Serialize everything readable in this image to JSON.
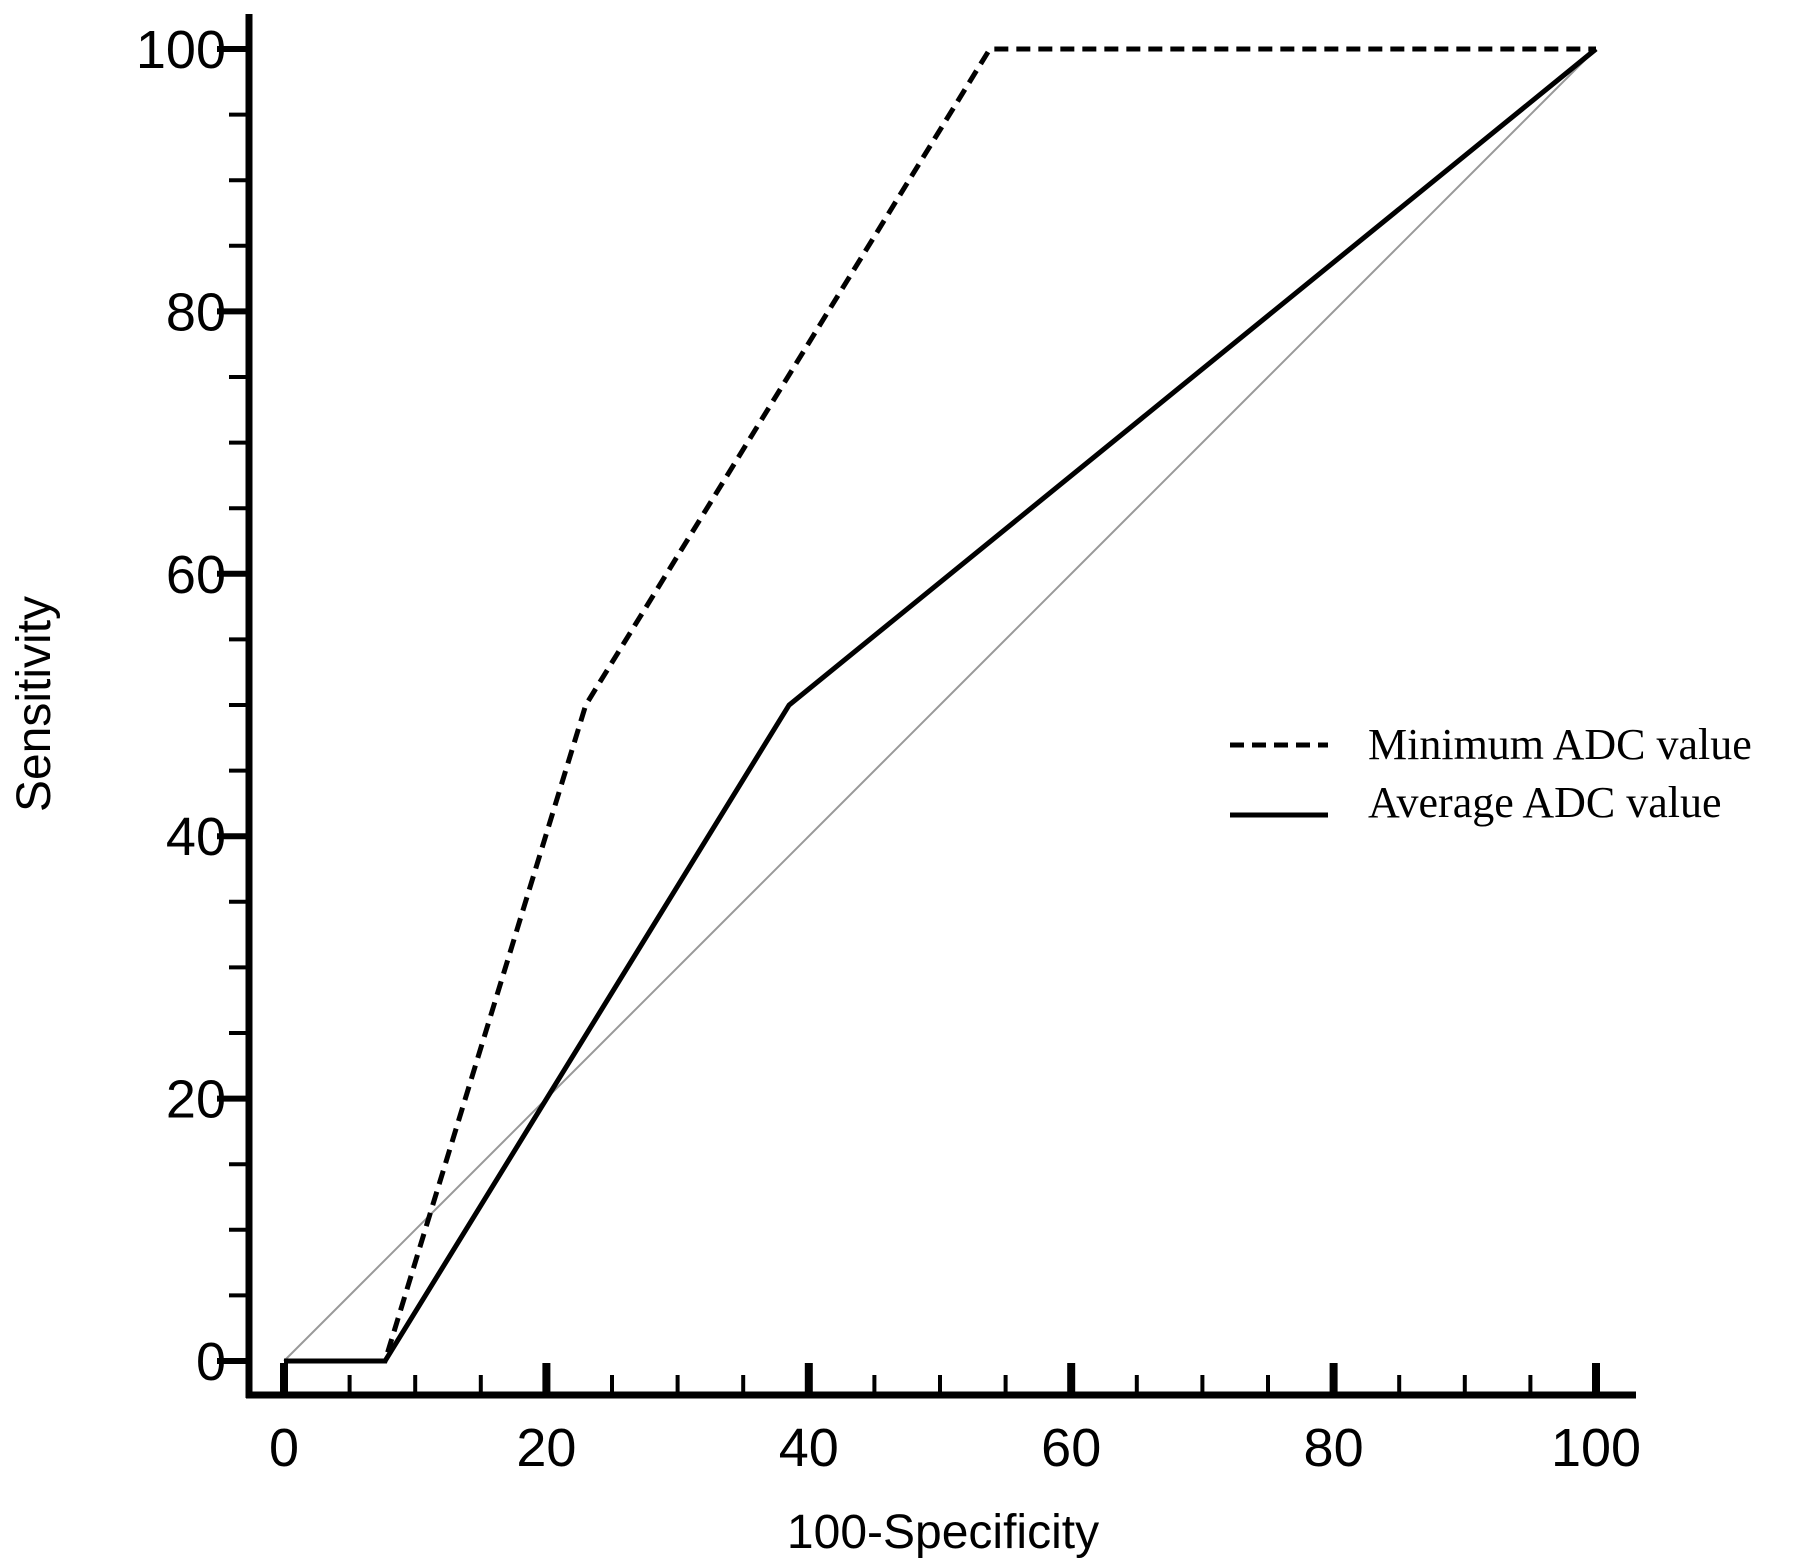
{
  "chart_data": {
    "type": "line",
    "xlabel": "100-Specificity",
    "ylabel": "Sensitivity",
    "xlim": [
      0,
      100
    ],
    "ylim": [
      0,
      100
    ],
    "x_ticks": [
      0,
      20,
      40,
      60,
      80,
      100
    ],
    "y_ticks": [
      0,
      20,
      40,
      60,
      80,
      100
    ],
    "grid": false,
    "legend_position": "center-right",
    "series": [
      {
        "name": "Minimum ADC value",
        "style": "dashed",
        "color": "#000000",
        "x": [
          0,
          7.7,
          23,
          53.8,
          100
        ],
        "y": [
          0,
          0,
          50,
          100,
          100
        ]
      },
      {
        "name": "Average ADC value",
        "style": "solid",
        "color": "#000000",
        "x": [
          0,
          7.7,
          38.5,
          100
        ],
        "y": [
          0,
          0,
          50,
          100
        ]
      }
    ],
    "reference_line": {
      "x": [
        0,
        100
      ],
      "y": [
        0,
        100
      ],
      "color": "#999999"
    }
  }
}
